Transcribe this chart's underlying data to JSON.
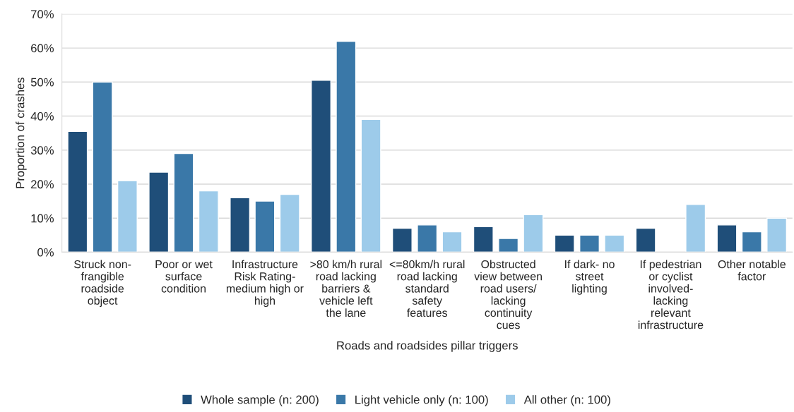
{
  "chart_data": {
    "type": "bar",
    "xlabel": "Roads and roadsides pillar triggers",
    "ylabel": "Proportion of crashes",
    "categories": [
      "Struck non-frangible roadside object",
      "Poor or wet surface condition",
      "Infrastructure Risk Rating-medium high or high",
      ">80 km/h rural road lacking barriers & vehicle left the lane",
      "<=80km/h rural road lacking standard safety features",
      "Obstructed view between road users/ lacking continuity cues",
      "If dark- no street lighting",
      "If pedestrian or cyclist involved-lacking relevant infrastructure",
      "Other notable factor"
    ],
    "series": [
      {
        "name": "Whole sample (n: 200)",
        "color": "#1f4e79",
        "values": [
          35.5,
          23.5,
          16,
          50.5,
          7,
          7.5,
          5,
          7,
          8
        ]
      },
      {
        "name": "Light vehicle only (n: 100)",
        "color": "#3a78a8",
        "values": [
          50,
          29,
          15,
          62,
          8,
          4,
          5,
          null,
          6
        ]
      },
      {
        "name": "All other (n: 100)",
        "color": "#9dcbea",
        "values": [
          21,
          18,
          17,
          39,
          6,
          11,
          5,
          14,
          10
        ]
      }
    ],
    "ylim": [
      0,
      70
    ],
    "yticks": [
      {
        "value": 0,
        "label": "0%"
      },
      {
        "value": 10,
        "label": "10%"
      },
      {
        "value": 20,
        "label": "20%"
      },
      {
        "value": 30,
        "label": "30%"
      },
      {
        "value": 40,
        "label": "40%"
      },
      {
        "value": 50,
        "label": "50%"
      },
      {
        "value": 60,
        "label": "60%"
      },
      {
        "value": 70,
        "label": "70%"
      }
    ],
    "grid": "y",
    "legend": "bottom"
  }
}
